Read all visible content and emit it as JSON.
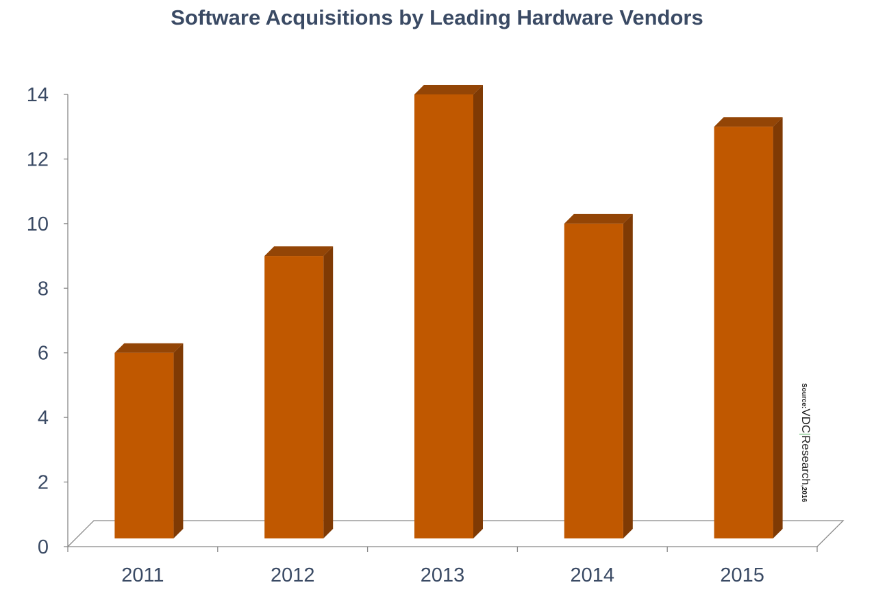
{
  "chart_data": {
    "type": "bar",
    "title": "Software Acquisitions by Leading Hardware Vendors",
    "categories": [
      "2011",
      "2012",
      "2013",
      "2014",
      "2015"
    ],
    "values": [
      6,
      9,
      14,
      10,
      13
    ],
    "xlabel": "",
    "ylabel": "",
    "ylim": [
      0,
      14
    ],
    "yticks": [
      "0",
      "2",
      "4",
      "6",
      "8",
      "10",
      "12",
      "14"
    ],
    "grid": false,
    "legend": "none",
    "colors": {
      "bar_front": "#c05800",
      "bar_side": "#7f3a04",
      "bar_top": "#934506",
      "axis": "#888888",
      "text": "#3a4a64"
    }
  },
  "source_note": {
    "prefix": "Source:",
    "brand_a": "VDC",
    "brand_b": "Research",
    "year": ",2016"
  }
}
